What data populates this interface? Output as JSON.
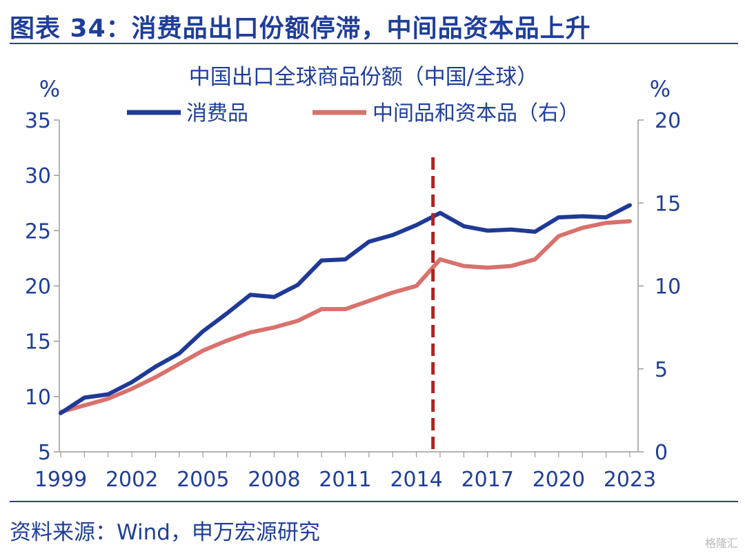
{
  "header": {
    "title": "图表 34：消费品出口份额停滞，中间品资本品上升"
  },
  "footer": {
    "source": "资料来源：Wind，申万宏源研究",
    "watermark": "格隆汇"
  },
  "colors": {
    "accent": "#1F3E99",
    "series_consumer": "#1F3A96",
    "series_intermediate": "#D9716C",
    "marker": "#B22222"
  },
  "chart_data": {
    "type": "line",
    "title": "中国出口全球商品份额（中国/全球）",
    "left_unit": "%",
    "right_unit": "%",
    "x": [
      1999,
      2000,
      2001,
      2002,
      2003,
      2004,
      2005,
      2006,
      2007,
      2008,
      2009,
      2010,
      2011,
      2012,
      2013,
      2014,
      2015,
      2016,
      2017,
      2018,
      2019,
      2020,
      2021,
      2022,
      2023
    ],
    "x_ticks": [
      "1999",
      "2002",
      "2005",
      "2008",
      "2011",
      "2014",
      "2017",
      "2020",
      "2023"
    ],
    "left_axis": {
      "ylim": [
        5,
        35
      ],
      "ticks": [
        "5",
        "10",
        "15",
        "20",
        "25",
        "30",
        "35"
      ]
    },
    "right_axis": {
      "ylim": [
        0,
        20
      ],
      "ticks": [
        "0",
        "5",
        "10",
        "15",
        "20"
      ]
    },
    "series": [
      {
        "name": "消费品",
        "axis": "left",
        "values": [
          8.5,
          9.9,
          10.2,
          11.3,
          12.7,
          13.9,
          15.9,
          17.5,
          19.2,
          19.0,
          20.1,
          22.3,
          22.4,
          24.0,
          24.6,
          25.5,
          26.6,
          25.4,
          25.0,
          25.1,
          24.9,
          26.2,
          26.3,
          26.2,
          27.3
        ]
      },
      {
        "name": "中间品和资本品（右）",
        "axis": "right",
        "values": [
          2.4,
          2.8,
          3.2,
          3.8,
          4.5,
          5.3,
          6.1,
          6.7,
          7.2,
          7.5,
          7.9,
          8.6,
          8.6,
          9.1,
          9.6,
          10.0,
          11.6,
          11.2,
          11.1,
          11.2,
          11.6,
          13.0,
          13.5,
          13.8,
          13.9
        ]
      }
    ],
    "vline_x": 2014.7,
    "legend_placement": "top",
    "grid": false
  }
}
